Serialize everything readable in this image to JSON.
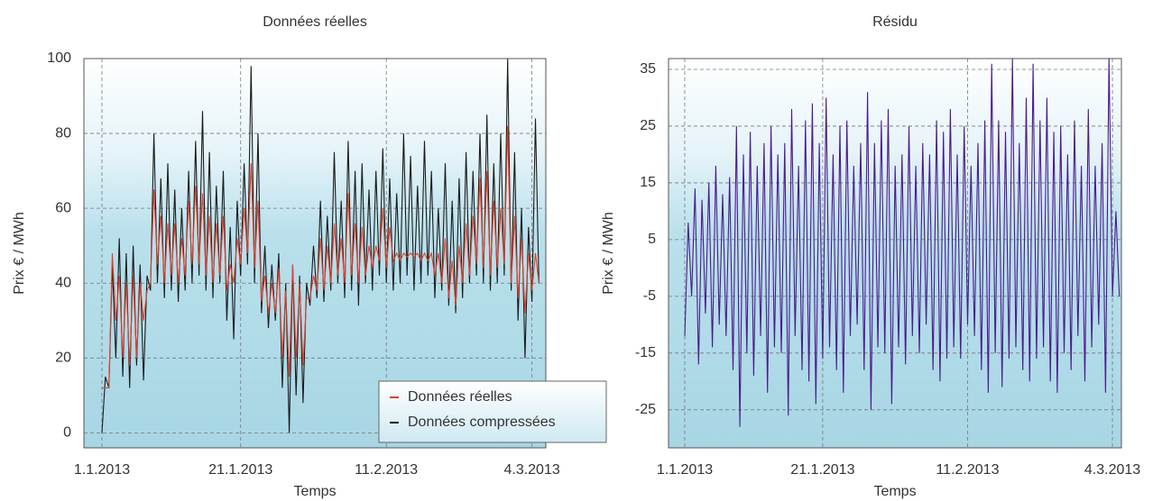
{
  "chart_data": [
    {
      "type": "line",
      "title": "Données réelles",
      "ylabel": "Prix € / MWh",
      "xlabel": "Temps",
      "x": [
        0,
        0.5,
        1,
        1.5,
        2,
        2.5,
        3,
        3.5,
        4,
        4.5,
        5,
        5.5,
        6,
        6.5,
        7,
        7.5,
        8,
        8.5,
        9,
        9.5,
        10,
        10.5,
        11,
        11.5,
        12,
        12.5,
        13,
        13.5,
        14,
        14.5,
        15,
        15.5,
        16,
        16.5,
        17,
        17.5,
        18,
        18.5,
        19,
        19.5,
        20,
        20.5,
        21,
        21.5,
        22,
        22.5,
        23,
        23.5,
        24,
        24.5,
        25,
        25.5,
        26,
        26.5,
        27,
        27.5,
        28,
        28.5,
        29,
        29.5,
        30,
        30.5,
        31,
        31.5,
        32,
        32.5,
        33,
        33.5,
        34,
        34.5,
        35,
        35.5,
        36,
        36.5,
        37,
        37.5,
        38,
        38.5,
        39,
        39.5,
        40,
        40.5,
        41,
        41.5,
        42,
        42.5,
        43,
        43.5,
        44,
        44.5,
        45,
        45.5,
        46,
        46.5,
        47,
        47.5,
        48,
        48.5,
        49,
        49.5,
        50,
        50.5,
        51,
        51.5,
        52,
        52.5,
        53,
        53.5,
        54,
        54.5,
        55,
        55.5,
        56,
        56.5,
        57,
        57.5,
        58,
        58.5,
        59,
        59.5,
        60,
        60.5,
        61,
        61.5,
        62,
        62.5,
        63
      ],
      "series": [
        {
          "name": "Données compressées",
          "color": "#1a1a1a",
          "values": [
            0,
            15,
            12,
            45,
            20,
            52,
            15,
            48,
            12,
            50,
            18,
            45,
            14,
            42,
            38,
            80,
            40,
            68,
            36,
            72,
            38,
            65,
            35,
            60,
            38,
            70,
            40,
            78,
            42,
            86,
            38,
            75,
            36,
            66,
            40,
            70,
            30,
            55,
            25,
            62,
            42,
            72,
            45,
            98,
            40,
            80,
            32,
            50,
            28,
            45,
            30,
            48,
            12,
            40,
            0,
            45,
            10,
            42,
            8,
            40,
            34,
            50,
            36,
            62,
            35,
            58,
            38,
            75,
            40,
            62,
            36,
            78,
            38,
            70,
            34,
            72,
            40,
            65,
            38,
            70,
            42,
            76,
            40,
            68,
            38,
            64,
            40,
            80,
            42,
            74,
            38,
            66,
            40,
            78,
            42,
            70,
            36,
            60,
            38,
            72,
            34,
            62,
            32,
            68,
            36,
            75,
            40,
            70,
            42,
            80,
            40,
            85,
            38,
            72,
            40,
            80,
            42,
            100,
            38,
            75,
            30,
            60,
            20,
            55,
            35,
            84,
            40
          ]
        },
        {
          "name": "Données réelles",
          "color": "#e0402a",
          "values": [
            12,
            12,
            12,
            48,
            30,
            42,
            20,
            40,
            18,
            42,
            20,
            40,
            30,
            38,
            40,
            65,
            45,
            58,
            40,
            56,
            42,
            56,
            40,
            52,
            42,
            62,
            45,
            66,
            45,
            64,
            42,
            58,
            40,
            56,
            42,
            58,
            38,
            45,
            40,
            52,
            45,
            60,
            48,
            72,
            44,
            62,
            35,
            42,
            32,
            40,
            32,
            44,
            20,
            38,
            15,
            45,
            20,
            40,
            18,
            36,
            36,
            42,
            38,
            52,
            38,
            50,
            40,
            56,
            42,
            52,
            40,
            64,
            42,
            56,
            40,
            55,
            42,
            50,
            44,
            50,
            46,
            60,
            44,
            55,
            46,
            48,
            46,
            48,
            47,
            48,
            47,
            48,
            46,
            48,
            46,
            48,
            42,
            48,
            40,
            52,
            36,
            46,
            34,
            50,
            40,
            56,
            42,
            58,
            45,
            68,
            44,
            70,
            42,
            62,
            44,
            60,
            45,
            82,
            40,
            58,
            36,
            52,
            32,
            48,
            38,
            48,
            40
          ]
        }
      ],
      "xlim": [
        -2.6,
        64
      ],
      "ylim": [
        -4,
        100
      ],
      "xticks": [
        {
          "value": 0,
          "label": "1.1.2013"
        },
        {
          "value": 20,
          "label": "21.1.2013"
        },
        {
          "value": 41,
          "label": "11.2.2013"
        },
        {
          "value": 62,
          "label": "4.3.2013"
        }
      ],
      "yticks": [
        0,
        20,
        40,
        60,
        80,
        100
      ],
      "grid": true,
      "legend": "lower right"
    },
    {
      "type": "line",
      "title": "Résidu",
      "ylabel": "Prix € / MWh",
      "xlabel": "Temps",
      "x": [
        0,
        0.5,
        1,
        1.5,
        2,
        2.5,
        3,
        3.5,
        4,
        4.5,
        5,
        5.5,
        6,
        6.5,
        7,
        7.5,
        8,
        8.5,
        9,
        9.5,
        10,
        10.5,
        11,
        11.5,
        12,
        12.5,
        13,
        13.5,
        14,
        14.5,
        15,
        15.5,
        16,
        16.5,
        17,
        17.5,
        18,
        18.5,
        19,
        19.5,
        20,
        20.5,
        21,
        21.5,
        22,
        22.5,
        23,
        23.5,
        24,
        24.5,
        25,
        25.5,
        26,
        26.5,
        27,
        27.5,
        28,
        28.5,
        29,
        29.5,
        30,
        30.5,
        31,
        31.5,
        32,
        32.5,
        33,
        33.5,
        34,
        34.5,
        35,
        35.5,
        36,
        36.5,
        37,
        37.5,
        38,
        38.5,
        39,
        39.5,
        40,
        40.5,
        41,
        41.5,
        42,
        42.5,
        43,
        43.5,
        44,
        44.5,
        45,
        45.5,
        46,
        46.5,
        47,
        47.5,
        48,
        48.5,
        49,
        49.5,
        50,
        50.5,
        51,
        51.5,
        52,
        52.5,
        53,
        53.5,
        54,
        54.5,
        55,
        55.5,
        56,
        56.5,
        57,
        57.5,
        58,
        58.5,
        59,
        59.5,
        60,
        60.5,
        61,
        61.5,
        62,
        62.5,
        63
      ],
      "series": [
        {
          "color": "#4b1a8c",
          "values": [
            -12,
            8,
            -5,
            14,
            -17,
            12,
            -8,
            15,
            -14,
            18,
            -10,
            13,
            -12,
            16,
            -18,
            25,
            -28,
            20,
            -15,
            24,
            -19,
            18,
            -12,
            22,
            -22,
            25,
            -14,
            20,
            -15,
            22,
            -26,
            28,
            -12,
            18,
            -18,
            26,
            -20,
            29,
            -24,
            22,
            -16,
            30,
            -14,
            20,
            -18,
            25,
            -22,
            26,
            -12,
            18,
            -10,
            22,
            -18,
            31,
            -25,
            22,
            -14,
            26,
            -15,
            28,
            -24,
            18,
            -14,
            20,
            -17,
            25,
            -12,
            18,
            -15,
            22,
            -10,
            20,
            -18,
            26,
            -20,
            24,
            -16,
            28,
            -14,
            20,
            -16,
            25,
            -10,
            18,
            -12,
            22,
            -18,
            26,
            -22,
            36,
            -15,
            26,
            -21,
            24,
            -16,
            37,
            -14,
            22,
            -18,
            30,
            -20,
            36,
            -16,
            26,
            -14,
            30,
            -20,
            24,
            -22,
            25,
            -15,
            20,
            -18,
            26,
            -12,
            18,
            -20,
            28,
            -14,
            18,
            -10,
            22,
            -22,
            37,
            -5,
            10,
            -5
          ]
        }
      ],
      "xlim": [
        -2.35,
        63.3
      ],
      "ylim": [
        -31.7,
        36.9
      ],
      "xticks": [
        {
          "value": 0,
          "label": "1.1.2013"
        },
        {
          "value": 20,
          "label": "21.1.2013"
        },
        {
          "value": 41,
          "label": "11.2.2013"
        },
        {
          "value": 62,
          "label": "4.3.2013"
        }
      ],
      "yticks": [
        -25,
        -15,
        -5,
        5,
        15,
        25,
        35
      ],
      "grid": true
    }
  ]
}
